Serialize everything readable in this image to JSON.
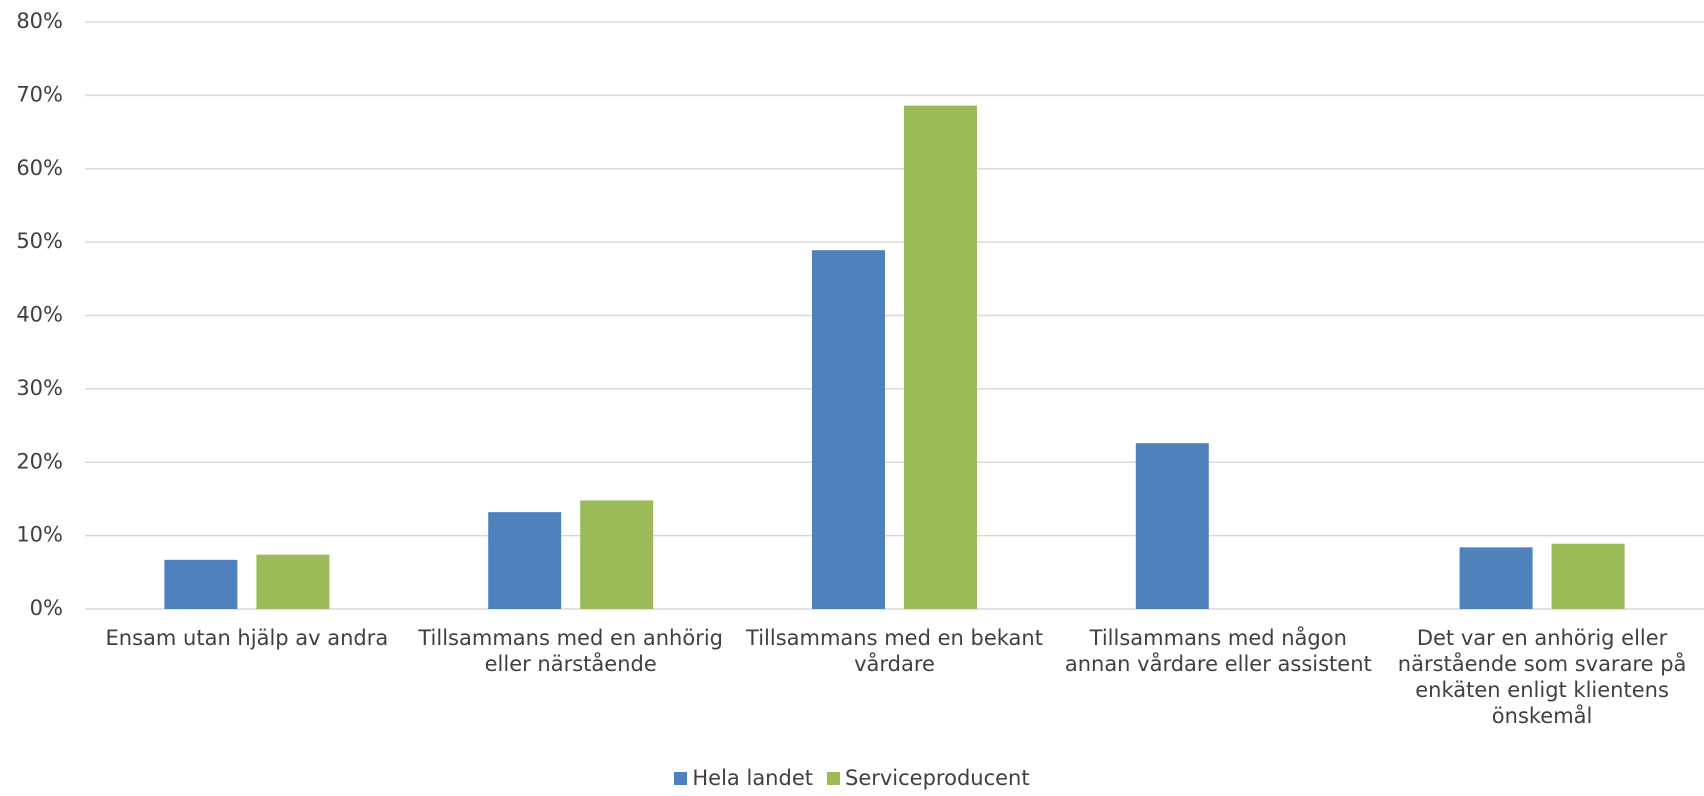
{
  "chart_data": {
    "type": "bar",
    "categories": [
      "Ensam utan hjälp av andra",
      "Tillsammans med en anhörig eller närstående",
      "Tillsammans med en bekant vårdare",
      "Tillsammans med någon annan vårdare eller assistent",
      "Det var en anhörig eller närstående som svarare på enkäten enligt klientens önskemål"
    ],
    "series": [
      {
        "name": "Hela landet",
        "color": "#4f81bd",
        "values": [
          6.7,
          13.2,
          48.9,
          22.6,
          8.4
        ]
      },
      {
        "name": "Serviceproducent",
        "color": "#9bbb59",
        "values": [
          7.4,
          14.8,
          68.6,
          null,
          8.9
        ]
      }
    ],
    "ylim": [
      0,
      80
    ],
    "yticks": [
      {
        "value": 0,
        "label": "0%"
      },
      {
        "value": 10,
        "label": "10%"
      },
      {
        "value": 20,
        "label": "20%"
      },
      {
        "value": 30,
        "label": "30%"
      },
      {
        "value": 40,
        "label": "40%"
      },
      {
        "value": 50,
        "label": "50%"
      },
      {
        "value": 60,
        "label": "60%"
      },
      {
        "value": 70,
        "label": "70%"
      },
      {
        "value": 80,
        "label": "80%"
      }
    ],
    "grid": true,
    "legend": "bottom"
  }
}
